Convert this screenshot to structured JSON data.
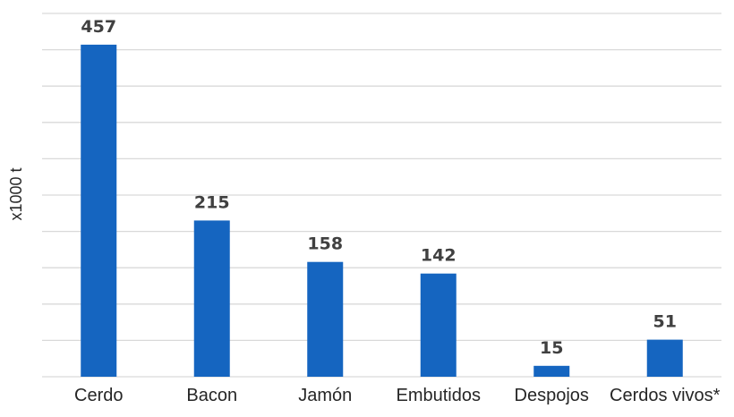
{
  "chart_data": {
    "type": "bar",
    "categories": [
      "Cerdo",
      "Bacon",
      "Jamón",
      "Embutidos",
      "Despojos",
      "Cerdos vivos*"
    ],
    "values": [
      457,
      215,
      158,
      142,
      15,
      51
    ],
    "ylabel": "x1000 t",
    "ylim": [
      0,
      500
    ],
    "grid": true,
    "legend": "none",
    "colors": {
      "bar": "#1565c0",
      "grid": "#d9d9d9",
      "data_label": "#404040"
    }
  }
}
